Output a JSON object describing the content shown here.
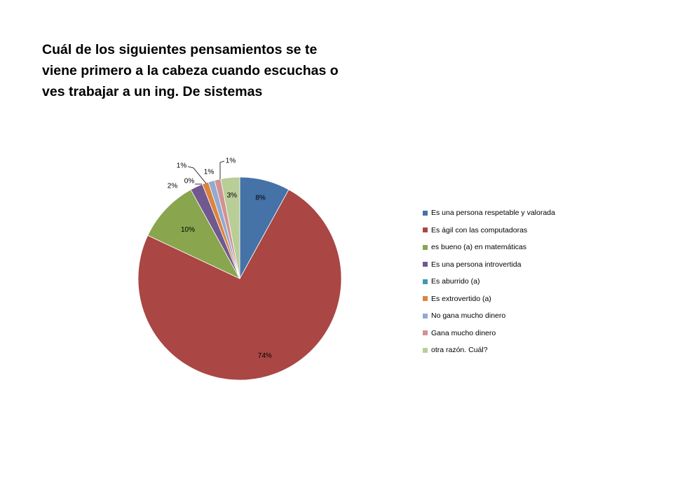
{
  "chart_data": {
    "type": "pie",
    "title_lines": [
      "Cuál de los siguientes pensamientos se te",
      "viene primero a la cabeza cuando escuchas o",
      "ves trabajar a un ing. De sistemas"
    ],
    "legend_position": "right",
    "slices": [
      {
        "label": "Es una persona respetable y valorada",
        "value": 8,
        "data_label": "8%",
        "color": "#4572A7"
      },
      {
        "label": "Es ágil con las computadoras",
        "value": 74,
        "data_label": "74%",
        "color": "#AA4643"
      },
      {
        "label": "es bueno (a) en matemáticas",
        "value": 10,
        "data_label": "10%",
        "color": "#89A54E"
      },
      {
        "label": "Es una persona introvertida",
        "value": 2,
        "data_label": "2%",
        "color": "#71588F"
      },
      {
        "label": "Es aburrido (a)",
        "value": 0,
        "data_label": "0%",
        "color": "#4198AF"
      },
      {
        "label": "Es extrovertido (a)",
        "value": 1,
        "data_label": "1%",
        "color": "#DB843D"
      },
      {
        "label": "No gana mucho dinero",
        "value": 1,
        "data_label": "1%",
        "color": "#93A9CF"
      },
      {
        "label": "Gana mucho dinero",
        "value": 1,
        "data_label": "1%",
        "color": "#D19392"
      },
      {
        "label": "otra razón. Cuál?",
        "value": 3,
        "data_label": "3%",
        "color": "#B9CD96"
      }
    ]
  }
}
